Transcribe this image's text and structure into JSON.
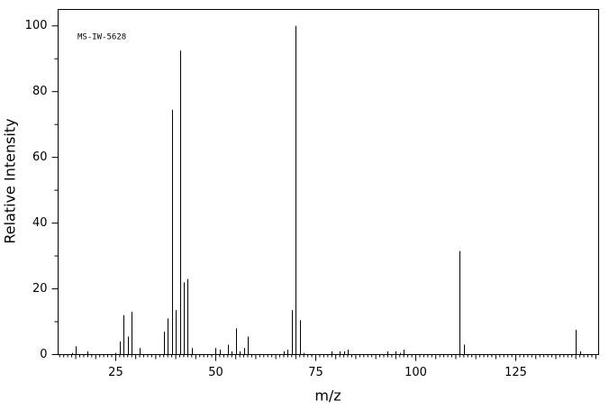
{
  "chart_data": {
    "type": "stick",
    "annotation": "MS-IW-5628",
    "xlabel": "m/z",
    "ylabel": "Relative Intensity",
    "color": "#000000",
    "x": [
      14,
      15,
      18,
      25,
      26,
      27,
      28,
      29,
      31,
      37,
      38,
      39,
      40,
      41,
      42,
      43,
      44,
      50,
      51,
      53,
      54,
      55,
      56,
      57,
      58,
      67,
      68,
      69,
      70,
      71,
      72,
      79,
      81,
      82,
      83,
      93,
      95,
      96,
      97,
      111,
      112,
      140,
      141
    ],
    "values": [
      0.5,
      2.5,
      1,
      0.5,
      4,
      12,
      5.5,
      13,
      2,
      7,
      11,
      74.5,
      13.5,
      92.5,
      22,
      23,
      2,
      2,
      1.5,
      3,
      1,
      8,
      1,
      2,
      5.5,
      1,
      1.5,
      13.5,
      100,
      10.5,
      0.5,
      1,
      1,
      1,
      1.5,
      1,
      1,
      0.5,
      1.5,
      31.5,
      3,
      7.5,
      1
    ],
    "xlim": [
      10.6,
      145.7
    ],
    "ylim": [
      0,
      105
    ],
    "xticks": [
      25,
      50,
      75,
      100,
      125
    ],
    "yticks": [
      0,
      20,
      40,
      60,
      80,
      100
    ],
    "yminorticks": [
      10,
      30,
      50,
      70,
      90
    ],
    "xminorticks": [
      11,
      12,
      13,
      14,
      15,
      16,
      17,
      18,
      19,
      20,
      21,
      22,
      23,
      24,
      26,
      27,
      28,
      29,
      30,
      31,
      32,
      33,
      34,
      35,
      36,
      37,
      38,
      39,
      40,
      41,
      42,
      43,
      44,
      45,
      46,
      47,
      48,
      49,
      51,
      52,
      53,
      54,
      55,
      56,
      57,
      58,
      59,
      60,
      61,
      62,
      63,
      64,
      65,
      66,
      67,
      68,
      69,
      70,
      71,
      72,
      73,
      74,
      76,
      77,
      78,
      79,
      80,
      81,
      82,
      83,
      84,
      85,
      86,
      87,
      88,
      89,
      90,
      91,
      92,
      93,
      94,
      95,
      96,
      97,
      98,
      99,
      101,
      102,
      103,
      104,
      105,
      106,
      107,
      108,
      109,
      110,
      111,
      112,
      113,
      114,
      115,
      116,
      117,
      118,
      119,
      120,
      121,
      122,
      123,
      124,
      126,
      127,
      128,
      129,
      130,
      131,
      132,
      133,
      134,
      135,
      136,
      137,
      138,
      139,
      140,
      141,
      142,
      143,
      144,
      145
    ]
  }
}
